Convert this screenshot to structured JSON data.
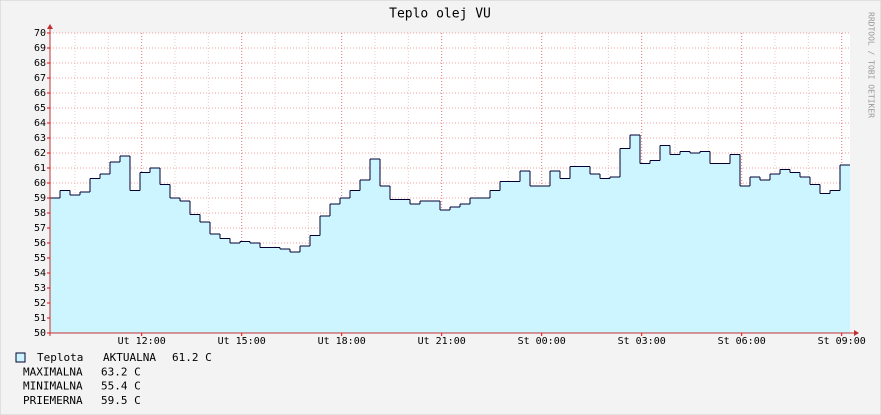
{
  "chart_data": {
    "type": "step-area",
    "title": "Teplo olej VU",
    "watermark": "RRDTOOL / TOBI OETIKER",
    "x": [
      9.25,
      9.55,
      9.85,
      10.15,
      10.45,
      10.75,
      11.05,
      11.35,
      11.65,
      11.95,
      12.25,
      12.55,
      12.85,
      13.15,
      13.45,
      13.75,
      14.05,
      14.35,
      14.65,
      14.95,
      15.25,
      15.55,
      15.85,
      16.15,
      16.45,
      16.75,
      17.05,
      17.35,
      17.65,
      17.95,
      18.25,
      18.55,
      18.85,
      19.15,
      19.45,
      19.75,
      20.05,
      20.35,
      20.65,
      20.95,
      21.25,
      21.55,
      21.85,
      22.15,
      22.45,
      22.75,
      23.05,
      23.35,
      23.65,
      23.95,
      24.25,
      24.55,
      24.85,
      25.15,
      25.45,
      25.75,
      26.05,
      26.35,
      26.65,
      26.95,
      27.25,
      27.55,
      27.85,
      28.15,
      28.45,
      28.75,
      29.05,
      29.35,
      29.65,
      29.95,
      30.25,
      30.55,
      30.85,
      31.15,
      31.45,
      31.75,
      32.05,
      32.35,
      32.65,
      32.95
    ],
    "series": [
      {
        "name": "Teplota",
        "color": "#000033",
        "fill": "#ccf5ff",
        "values": [
          59.0,
          59.5,
          59.2,
          59.4,
          60.3,
          60.6,
          61.4,
          61.8,
          59.5,
          60.7,
          61.0,
          59.9,
          59.0,
          58.8,
          57.9,
          57.4,
          56.6,
          56.3,
          56.0,
          56.1,
          56.0,
          55.7,
          55.7,
          55.6,
          55.4,
          55.8,
          56.5,
          57.8,
          58.6,
          59.0,
          59.5,
          60.2,
          61.6,
          59.8,
          58.9,
          58.9,
          58.6,
          58.8,
          58.8,
          58.2,
          58.4,
          58.6,
          59.0,
          59.0,
          59.5,
          60.1,
          60.1,
          60.8,
          59.8,
          59.8,
          60.8,
          60.3,
          61.1,
          61.1,
          60.6,
          60.3,
          60.4,
          62.3,
          63.2,
          61.3,
          61.5,
          62.5,
          61.9,
          62.1,
          62.0,
          62.1,
          61.3,
          61.3,
          61.9,
          59.8,
          60.4,
          60.2,
          60.6,
          60.9,
          60.7,
          60.4,
          59.9,
          59.3,
          59.5,
          61.2
        ]
      }
    ],
    "stats": [
      {
        "label": "AKTUALNA",
        "value": "61.2 C"
      },
      {
        "label": "MAXIMALNA",
        "value": "63.2 C"
      },
      {
        "label": "MINIMALNA",
        "value": "55.4 C"
      },
      {
        "label": "PRIEMERNA",
        "value": "59.5 C"
      }
    ],
    "xlim": [
      9.25,
      33.25
    ],
    "xticks": [
      {
        "value": 12,
        "label": "Ut 12:00"
      },
      {
        "value": 15,
        "label": "Ut 15:00"
      },
      {
        "value": 18,
        "label": "Ut 18:00"
      },
      {
        "value": 21,
        "label": "Ut 21:00"
      },
      {
        "value": 24,
        "label": "St 00:00"
      },
      {
        "value": 27,
        "label": "St 03:00"
      },
      {
        "value": 30,
        "label": "St 06:00"
      },
      {
        "value": 33,
        "label": "St 09:00"
      }
    ],
    "x_minor_step": 1,
    "ylim": [
      50,
      70
    ],
    "yticks": [
      50,
      51,
      52,
      53,
      54,
      55,
      56,
      57,
      58,
      59,
      60,
      61,
      62,
      63,
      64,
      65,
      66,
      67,
      68,
      69,
      70
    ],
    "grid": true
  }
}
